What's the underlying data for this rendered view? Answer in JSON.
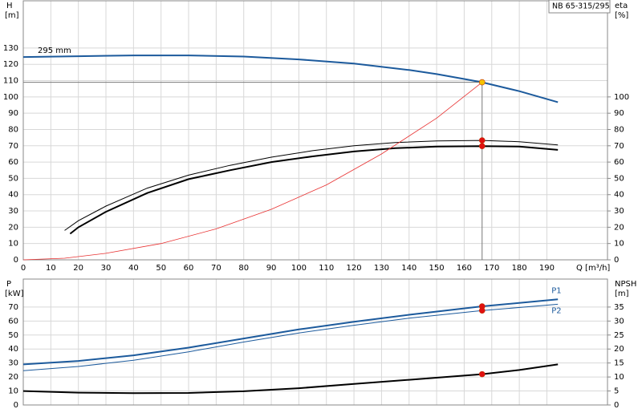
{
  "chart_data": [
    {
      "type": "line",
      "title": "NB 65-315/295",
      "annotation": "295 mm",
      "ylabel": "H",
      "yunit": "[m]",
      "y2label": "eta",
      "y2unit": "[%]",
      "xlabel": "Q [m³/h]",
      "xlim": [
        0,
        212
      ],
      "xticks": [
        0,
        10,
        20,
        30,
        40,
        50,
        60,
        70,
        80,
        90,
        100,
        110,
        120,
        130,
        140,
        150,
        160,
        170,
        180,
        190
      ],
      "ylim": [
        0,
        159
      ],
      "yticks": [
        0,
        10,
        20,
        30,
        40,
        50,
        60,
        70,
        80,
        90,
        100,
        110,
        120,
        130
      ],
      "y2lim": [
        0,
        159
      ],
      "y2ticks": [
        0,
        10,
        20,
        30,
        40,
        50,
        60,
        70,
        80,
        90,
        100
      ],
      "grid": true,
      "series": [
        {
          "color": "#1c5a9c",
          "width": 2,
          "axis": "y",
          "x": [
            0,
            20,
            40,
            60,
            80,
            100,
            120,
            140,
            150,
            160,
            166.5,
            180,
            194
          ],
          "values": [
            124.5,
            125,
            125.5,
            125.5,
            124.8,
            123,
            120.5,
            116.5,
            114,
            111,
            109,
            103.5,
            96.8
          ]
        },
        {
          "color": "#000000",
          "width": 1,
          "axis": "y2",
          "x": [
            15,
            20,
            30,
            45,
            60,
            75,
            90,
            105,
            120,
            135,
            150,
            166.5,
            180,
            194
          ],
          "values": [
            18,
            24,
            33,
            44,
            52,
            58,
            63,
            67,
            70,
            72,
            73,
            73.3,
            72.5,
            70.5
          ]
        },
        {
          "color": "#000000",
          "width": 2,
          "axis": "y2",
          "x": [
            17,
            20,
            30,
            45,
            60,
            75,
            90,
            105,
            120,
            135,
            150,
            166.5,
            180,
            194
          ],
          "values": [
            16,
            20,
            29.5,
            41,
            49.5,
            55,
            60,
            63.5,
            66.5,
            68.5,
            69.5,
            69.8,
            69.5,
            67.5
          ]
        },
        {
          "color": "#e83030",
          "width": 0.8,
          "axis": "y",
          "x": [
            0,
            15,
            30,
            50,
            70,
            90,
            110,
            130,
            150,
            166.5
          ],
          "values": [
            0,
            1,
            4,
            10,
            19,
            31,
            46,
            65,
            87,
            109
          ]
        }
      ],
      "points": [
        {
          "x": 166.5,
          "y": 109,
          "axis": "y",
          "color": "#f5c400",
          "crosshair": true
        },
        {
          "x": 166.5,
          "y": 73.3,
          "axis": "y2",
          "color": "#e01010"
        },
        {
          "x": 166.5,
          "y": 69.8,
          "axis": "y2",
          "color": "#e01010"
        }
      ]
    },
    {
      "type": "line",
      "ylabel": "P",
      "yunit": "[kW]",
      "y2label": "NPSH",
      "y2unit": "[m]",
      "xlim": [
        0,
        212
      ],
      "ylim": [
        0,
        90
      ],
      "yticks": [
        0,
        10,
        20,
        30,
        40,
        50,
        60,
        70
      ],
      "y2lim": [
        0,
        45
      ],
      "y2ticks": [
        0,
        5,
        10,
        15,
        20,
        25,
        30,
        35
      ],
      "grid": true,
      "series": [
        {
          "name": "P1",
          "color": "#1c5a9c",
          "width": 2,
          "axis": "y",
          "x": [
            0,
            20,
            40,
            60,
            80,
            100,
            120,
            140,
            166.5,
            194
          ],
          "values": [
            29,
            31.5,
            35.5,
            41,
            47.5,
            54,
            59.5,
            64.5,
            70.5,
            75.5
          ]
        },
        {
          "name": "P2",
          "color": "#1c5a9c",
          "width": 1,
          "axis": "y",
          "x": [
            0,
            20,
            40,
            60,
            80,
            100,
            120,
            140,
            166.5,
            194
          ],
          "values": [
            24.5,
            27.5,
            32,
            38,
            45,
            51.5,
            57,
            62,
            67.5,
            72
          ]
        },
        {
          "color": "#000000",
          "width": 2,
          "axis": "y2",
          "x": [
            0,
            20,
            40,
            60,
            80,
            100,
            120,
            140,
            166.5,
            180,
            194
          ],
          "values": [
            5,
            4.4,
            4.2,
            4.3,
            4.9,
            6,
            7.5,
            9,
            11,
            12.5,
            14.5
          ]
        }
      ],
      "points": [
        {
          "x": 166.5,
          "y": 70.5,
          "axis": "y",
          "color": "#e01010"
        },
        {
          "x": 166.5,
          "y": 67.5,
          "axis": "y",
          "color": "#e01010"
        },
        {
          "x": 166.5,
          "y": 11,
          "axis": "y2",
          "color": "#e01010"
        }
      ]
    }
  ]
}
